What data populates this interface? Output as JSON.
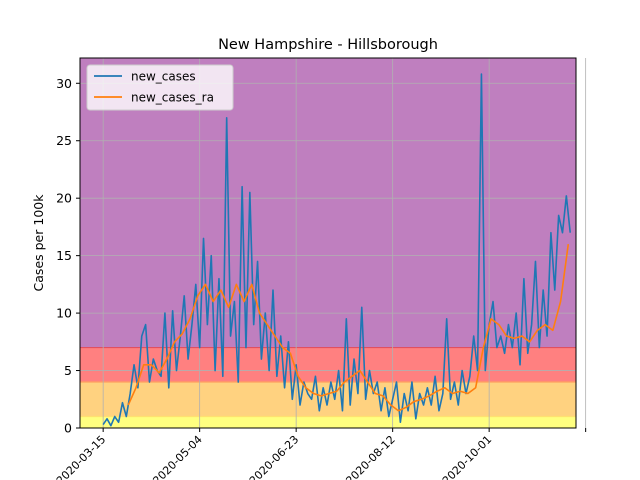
{
  "chart_data": {
    "type": "line",
    "title": "New Hampshire - Hillsborough",
    "xlabel": "",
    "ylabel": "Cases per 100k",
    "x_start": "2020-03-03",
    "x_end": "2020-11-15",
    "ylim": [
      0,
      32.2
    ],
    "yticks": [
      0,
      5,
      10,
      15,
      20,
      25,
      30
    ],
    "xtick_dates": [
      "2020-03-15",
      "2020-05-04",
      "2020-06-23",
      "2020-08-12",
      "2020-10-01",
      "2020-11-20"
    ],
    "xtick_labels": [
      "2020-03-15",
      "2020-05-04",
      "2020-06-23",
      "2020-08-12",
      "2020-10-01",
      ""
    ],
    "grid": true,
    "legend_position": "upper-left",
    "risk_bands": [
      {
        "from": 0,
        "to": 1,
        "color": "#ffff80"
      },
      {
        "from": 1,
        "to": 4,
        "color": "#ffd280"
      },
      {
        "from": 4,
        "to": 7,
        "color": "#ff8080"
      },
      {
        "from": 7,
        "to": 32.2,
        "color": "#bf7fbf"
      }
    ],
    "series": [
      {
        "name": "new_cases",
        "color": "#1f77b4",
        "points": [
          [
            "2020-03-15",
            0.3
          ],
          [
            "2020-03-17",
            0.8
          ],
          [
            "2020-03-19",
            0.2
          ],
          [
            "2020-03-21",
            1.0
          ],
          [
            "2020-03-23",
            0.5
          ],
          [
            "2020-03-25",
            2.2
          ],
          [
            "2020-03-27",
            1.0
          ],
          [
            "2020-03-29",
            3.0
          ],
          [
            "2020-03-31",
            5.5
          ],
          [
            "2020-04-02",
            3.5
          ],
          [
            "2020-04-04",
            8.0
          ],
          [
            "2020-04-06",
            9.0
          ],
          [
            "2020-04-08",
            4.0
          ],
          [
            "2020-04-10",
            6.0
          ],
          [
            "2020-04-12",
            5.0
          ],
          [
            "2020-04-14",
            4.5
          ],
          [
            "2020-04-16",
            10.0
          ],
          [
            "2020-04-18",
            3.5
          ],
          [
            "2020-04-20",
            10.2
          ],
          [
            "2020-04-22",
            5.0
          ],
          [
            "2020-04-24",
            8.0
          ],
          [
            "2020-04-26",
            11.5
          ],
          [
            "2020-04-28",
            6.0
          ],
          [
            "2020-04-30",
            9.0
          ],
          [
            "2020-05-02",
            12.5
          ],
          [
            "2020-05-04",
            7.0
          ],
          [
            "2020-05-06",
            16.5
          ],
          [
            "2020-05-08",
            9.0
          ],
          [
            "2020-05-10",
            15.0
          ],
          [
            "2020-05-12",
            5.0
          ],
          [
            "2020-05-14",
            13.0
          ],
          [
            "2020-05-16",
            4.5
          ],
          [
            "2020-05-18",
            27.0
          ],
          [
            "2020-05-20",
            8.0
          ],
          [
            "2020-05-22",
            11.0
          ],
          [
            "2020-05-24",
            4.0
          ],
          [
            "2020-05-26",
            21.0
          ],
          [
            "2020-05-28",
            7.0
          ],
          [
            "2020-05-30",
            20.5
          ],
          [
            "2020-06-01",
            9.0
          ],
          [
            "2020-06-03",
            14.5
          ],
          [
            "2020-06-05",
            6.0
          ],
          [
            "2020-06-07",
            10.0
          ],
          [
            "2020-06-09",
            5.0
          ],
          [
            "2020-06-11",
            12.0
          ],
          [
            "2020-06-13",
            4.5
          ],
          [
            "2020-06-15",
            8.0
          ],
          [
            "2020-06-17",
            3.5
          ],
          [
            "2020-06-19",
            7.5
          ],
          [
            "2020-06-21",
            2.5
          ],
          [
            "2020-06-23",
            5.5
          ],
          [
            "2020-06-25",
            2.0
          ],
          [
            "2020-06-27",
            4.0
          ],
          [
            "2020-06-29",
            3.0
          ],
          [
            "2020-07-01",
            2.5
          ],
          [
            "2020-07-03",
            4.5
          ],
          [
            "2020-07-05",
            1.5
          ],
          [
            "2020-07-07",
            3.5
          ],
          [
            "2020-07-09",
            2.0
          ],
          [
            "2020-07-11",
            4.0
          ],
          [
            "2020-07-13",
            2.5
          ],
          [
            "2020-07-15",
            5.0
          ],
          [
            "2020-07-17",
            1.5
          ],
          [
            "2020-07-19",
            9.5
          ],
          [
            "2020-07-21",
            2.0
          ],
          [
            "2020-07-23",
            6.0
          ],
          [
            "2020-07-25",
            3.0
          ],
          [
            "2020-07-27",
            10.5
          ],
          [
            "2020-07-29",
            2.5
          ],
          [
            "2020-07-31",
            5.0
          ],
          [
            "2020-08-02",
            3.0
          ],
          [
            "2020-08-04",
            4.0
          ],
          [
            "2020-08-06",
            1.5
          ],
          [
            "2020-08-08",
            3.5
          ],
          [
            "2020-08-10",
            1.0
          ],
          [
            "2020-08-12",
            2.5
          ],
          [
            "2020-08-14",
            4.0
          ],
          [
            "2020-08-16",
            0.5
          ],
          [
            "2020-08-18",
            3.0
          ],
          [
            "2020-08-20",
            1.5
          ],
          [
            "2020-08-22",
            4.0
          ],
          [
            "2020-08-24",
            0.8
          ],
          [
            "2020-08-26",
            3.0
          ],
          [
            "2020-08-28",
            2.0
          ],
          [
            "2020-08-30",
            3.5
          ],
          [
            "2020-09-01",
            2.0
          ],
          [
            "2020-09-03",
            4.5
          ],
          [
            "2020-09-05",
            1.5
          ],
          [
            "2020-09-07",
            3.0
          ],
          [
            "2020-09-09",
            9.5
          ],
          [
            "2020-09-11",
            2.5
          ],
          [
            "2020-09-13",
            4.0
          ],
          [
            "2020-09-15",
            2.0
          ],
          [
            "2020-09-17",
            5.0
          ],
          [
            "2020-09-19",
            3.0
          ],
          [
            "2020-09-21",
            4.5
          ],
          [
            "2020-09-23",
            8.0
          ],
          [
            "2020-09-25",
            5.0
          ],
          [
            "2020-09-27",
            30.8
          ],
          [
            "2020-09-29",
            5.0
          ],
          [
            "2020-10-01",
            9.0
          ],
          [
            "2020-10-03",
            11.0
          ],
          [
            "2020-10-05",
            7.0
          ],
          [
            "2020-10-07",
            8.0
          ],
          [
            "2020-10-09",
            6.5
          ],
          [
            "2020-10-11",
            9.0
          ],
          [
            "2020-10-13",
            7.0
          ],
          [
            "2020-10-15",
            10.0
          ],
          [
            "2020-10-17",
            5.5
          ],
          [
            "2020-10-19",
            13.0
          ],
          [
            "2020-10-21",
            6.5
          ],
          [
            "2020-10-23",
            9.0
          ],
          [
            "2020-10-25",
            14.5
          ],
          [
            "2020-10-27",
            7.0
          ],
          [
            "2020-10-29",
            12.0
          ],
          [
            "2020-10-31",
            8.0
          ],
          [
            "2020-11-02",
            17.0
          ],
          [
            "2020-11-04",
            12.0
          ],
          [
            "2020-11-06",
            18.5
          ],
          [
            "2020-11-08",
            17.0
          ],
          [
            "2020-11-10",
            20.2
          ],
          [
            "2020-11-12",
            17.0
          ]
        ]
      },
      {
        "name": "new_cases_ra",
        "color": "#ff7f0e",
        "points": [
          [
            "2020-03-28",
            2.0
          ],
          [
            "2020-04-01",
            3.5
          ],
          [
            "2020-04-05",
            5.5
          ],
          [
            "2020-04-09",
            5.5
          ],
          [
            "2020-04-13",
            4.8
          ],
          [
            "2020-04-17",
            6.0
          ],
          [
            "2020-04-21",
            7.5
          ],
          [
            "2020-04-25",
            8.2
          ],
          [
            "2020-04-29",
            9.5
          ],
          [
            "2020-05-03",
            11.5
          ],
          [
            "2020-05-07",
            12.5
          ],
          [
            "2020-05-11",
            11.0
          ],
          [
            "2020-05-15",
            12.0
          ],
          [
            "2020-05-19",
            10.5
          ],
          [
            "2020-05-23",
            12.5
          ],
          [
            "2020-05-27",
            11.0
          ],
          [
            "2020-05-31",
            12.5
          ],
          [
            "2020-06-04",
            10.0
          ],
          [
            "2020-06-08",
            9.0
          ],
          [
            "2020-06-12",
            8.0
          ],
          [
            "2020-06-16",
            7.0
          ],
          [
            "2020-06-20",
            6.5
          ],
          [
            "2020-06-24",
            4.5
          ],
          [
            "2020-06-28",
            3.5
          ],
          [
            "2020-07-02",
            3.0
          ],
          [
            "2020-07-06",
            2.8
          ],
          [
            "2020-07-10",
            3.0
          ],
          [
            "2020-07-14",
            3.2
          ],
          [
            "2020-07-18",
            4.0
          ],
          [
            "2020-07-22",
            4.5
          ],
          [
            "2020-07-26",
            5.0
          ],
          [
            "2020-07-30",
            4.0
          ],
          [
            "2020-08-03",
            3.0
          ],
          [
            "2020-08-07",
            2.8
          ],
          [
            "2020-08-11",
            2.0
          ],
          [
            "2020-08-15",
            1.5
          ],
          [
            "2020-08-19",
            1.8
          ],
          [
            "2020-08-23",
            2.3
          ],
          [
            "2020-08-27",
            2.5
          ],
          [
            "2020-08-31",
            2.8
          ],
          [
            "2020-09-04",
            3.2
          ],
          [
            "2020-09-08",
            3.5
          ],
          [
            "2020-09-12",
            3.0
          ],
          [
            "2020-09-16",
            3.2
          ],
          [
            "2020-09-20",
            3.0
          ],
          [
            "2020-09-24",
            3.5
          ],
          [
            "2020-09-28",
            7.0
          ],
          [
            "2020-10-02",
            9.5
          ],
          [
            "2020-10-06",
            9.0
          ],
          [
            "2020-10-10",
            8.0
          ],
          [
            "2020-10-14",
            7.8
          ],
          [
            "2020-10-18",
            8.0
          ],
          [
            "2020-10-22",
            7.5
          ],
          [
            "2020-10-26",
            8.5
          ],
          [
            "2020-10-30",
            9.0
          ],
          [
            "2020-11-03",
            8.5
          ],
          [
            "2020-11-07",
            11.0
          ],
          [
            "2020-11-11",
            16.0
          ]
        ]
      }
    ]
  }
}
